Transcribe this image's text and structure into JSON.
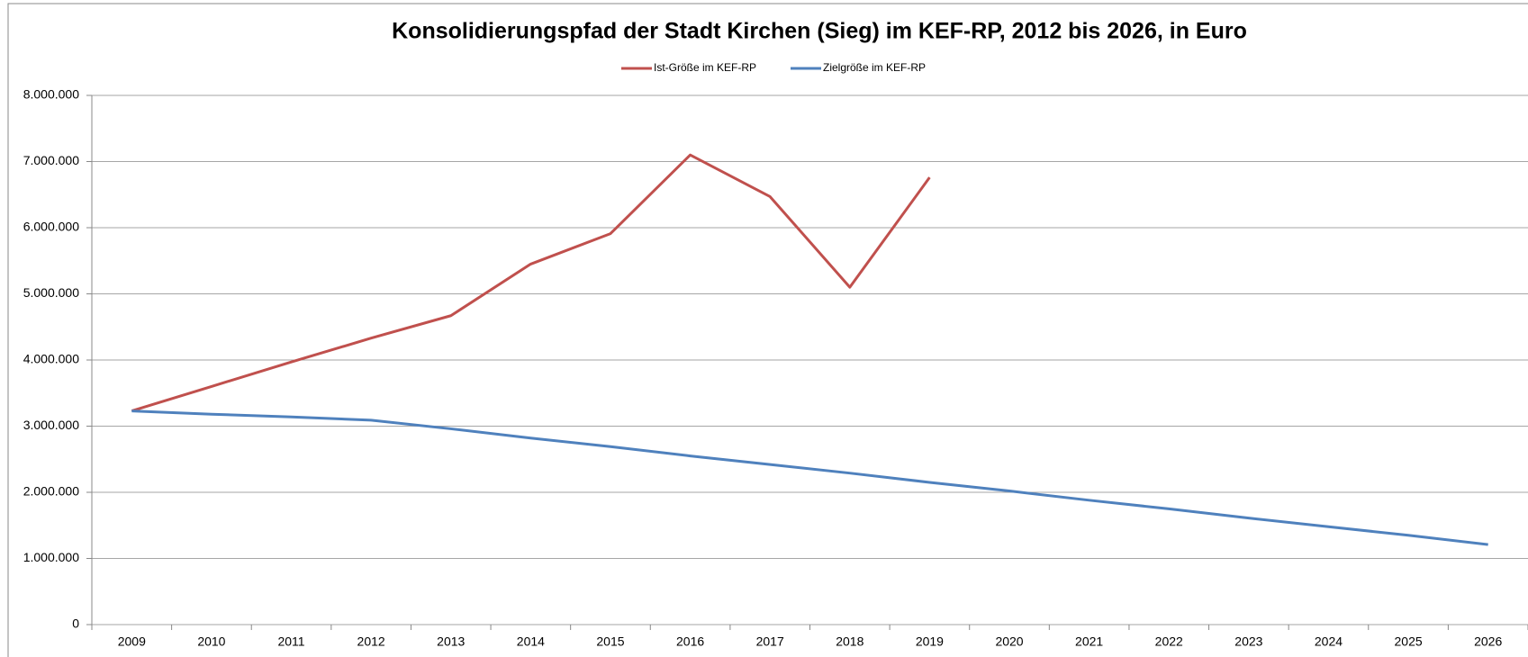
{
  "chart_data": {
    "type": "line",
    "title": "Konsolidierungspfad der Stadt Kirchen (Sieg) im KEF-RP, 2012 bis 2026, in Euro",
    "categories": [
      "2009",
      "2010",
      "2011",
      "2012",
      "2013",
      "2014",
      "2015",
      "2016",
      "2017",
      "2018",
      "2019",
      "2020",
      "2021",
      "2022",
      "2023",
      "2024",
      "2025",
      "2026"
    ],
    "series": [
      {
        "name": "Ist-Größe im KEF-RP",
        "color": "#c0504d",
        "values": [
          3230000,
          3600000,
          3970000,
          4330000,
          4670000,
          5450000,
          5910000,
          7100000,
          6470000,
          5100000,
          6760000,
          null,
          null,
          null,
          null,
          null,
          null,
          null
        ]
      },
      {
        "name": "Zielgröße im KEF-RP",
        "color": "#4f81bd",
        "values": [
          3230000,
          3180000,
          3140000,
          3090000,
          2960000,
          2820000,
          2690000,
          2550000,
          2420000,
          2290000,
          2150000,
          2020000,
          1880000,
          1750000,
          1610000,
          1480000,
          1350000,
          1210000
        ]
      }
    ],
    "ylim": [
      0,
      8000000
    ],
    "yticks": [
      0,
      {
        "value": 1000000,
        "label": "1.000.000"
      },
      {
        "value": 2000000,
        "label": "2.000.000"
      },
      {
        "value": 3000000,
        "label": "3.000.000"
      },
      {
        "value": 4000000,
        "label": "4.000.000"
      },
      {
        "value": 5000000,
        "label": "5.000.000"
      },
      {
        "value": 6000000,
        "label": "6.000.000"
      },
      {
        "value": 7000000,
        "label": "7.000.000"
      },
      {
        "value": 8000000,
        "label": "8.000.000"
      }
    ],
    "grid": true
  }
}
